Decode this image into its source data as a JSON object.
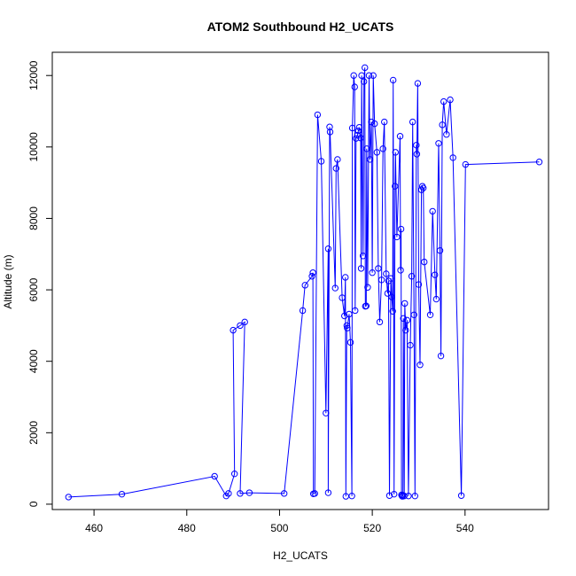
{
  "chart_data": {
    "type": "scatter",
    "title": "ATOM2 Southbound H2_UCATS",
    "xlabel": "H2_UCATS",
    "ylabel": "Altitude (m)",
    "xlim": [
      451,
      558
    ],
    "ylim": [
      -150,
      12650
    ],
    "x_ticks": [
      460,
      480,
      500,
      520,
      540
    ],
    "y_ticks": [
      0,
      2000,
      4000,
      6000,
      8000,
      10000,
      12000
    ],
    "grid": false,
    "legend": "none",
    "series_color": "#0000ff",
    "marker": "open-circle",
    "connected": true,
    "points": [
      [
        454.5,
        200
      ],
      [
        466,
        280
      ],
      [
        486,
        780
      ],
      [
        488.5,
        230
      ],
      [
        489,
        300
      ],
      [
        490.3,
        850
      ],
      [
        490,
        4870
      ],
      [
        491.5,
        5000
      ],
      [
        492.5,
        5100
      ],
      [
        491.5,
        300
      ],
      [
        493.5,
        320
      ],
      [
        501,
        300
      ],
      [
        505,
        5420
      ],
      [
        505.5,
        6130
      ],
      [
        507,
        6380
      ],
      [
        507.2,
        6480
      ],
      [
        507.3,
        290
      ],
      [
        507.6,
        300
      ],
      [
        508.2,
        10900
      ],
      [
        509,
        9600
      ],
      [
        510,
        2550
      ],
      [
        510.5,
        7150
      ],
      [
        510.5,
        320
      ],
      [
        510.8,
        10560
      ],
      [
        510.9,
        10420
      ],
      [
        512,
        6050
      ],
      [
        512.2,
        9400
      ],
      [
        512.5,
        9650
      ],
      [
        513.5,
        5780
      ],
      [
        514,
        5270
      ],
      [
        514.2,
        6350
      ],
      [
        514.3,
        220
      ],
      [
        514.5,
        5000
      ],
      [
        514.6,
        4930
      ],
      [
        515,
        5320
      ],
      [
        515.3,
        4530
      ],
      [
        515.6,
        230
      ],
      [
        515.7,
        10530
      ],
      [
        516,
        12000
      ],
      [
        516.2,
        11680
      ],
      [
        516.3,
        5420
      ],
      [
        516.5,
        10240
      ],
      [
        516.8,
        10330
      ],
      [
        517,
        10450
      ],
      [
        517.2,
        10550
      ],
      [
        517.5,
        10250
      ],
      [
        517.6,
        6600
      ],
      [
        517.7,
        12000
      ],
      [
        518,
        6950
      ],
      [
        518.2,
        11830
      ],
      [
        518.4,
        12220
      ],
      [
        518.5,
        5540
      ],
      [
        518.7,
        5550
      ],
      [
        518.8,
        9950
      ],
      [
        519,
        6070
      ],
      [
        519.3,
        12000
      ],
      [
        519.5,
        9650
      ],
      [
        519.8,
        10700
      ],
      [
        520,
        6480
      ],
      [
        520.2,
        12000
      ],
      [
        520.5,
        10650
      ],
      [
        521,
        9850
      ],
      [
        521.3,
        6600
      ],
      [
        521.6,
        5100
      ],
      [
        522,
        6280
      ],
      [
        522.3,
        9950
      ],
      [
        522.6,
        10700
      ],
      [
        523,
        6450
      ],
      [
        523.3,
        5900
      ],
      [
        523.5,
        6250
      ],
      [
        523.7,
        240
      ],
      [
        524,
        6320
      ],
      [
        524.2,
        5800
      ],
      [
        524.4,
        5400
      ],
      [
        524.5,
        11870
      ],
      [
        524.7,
        280
      ],
      [
        524.9,
        8900
      ],
      [
        525,
        9850
      ],
      [
        525.3,
        7480
      ],
      [
        526,
        10300
      ],
      [
        526.1,
        6550
      ],
      [
        526.2,
        7700
      ],
      [
        526.3,
        260
      ],
      [
        526.4,
        230
      ],
      [
        526.5,
        220
      ],
      [
        526.6,
        250
      ],
      [
        526.7,
        5200
      ],
      [
        526.9,
        230
      ],
      [
        527,
        5620
      ],
      [
        527.2,
        4870
      ],
      [
        527.5,
        5150
      ],
      [
        527.8,
        230
      ],
      [
        528.2,
        4450
      ],
      [
        528.5,
        6380
      ],
      [
        528.7,
        10700
      ],
      [
        529,
        5300
      ],
      [
        529.2,
        230
      ],
      [
        529.5,
        10050
      ],
      [
        529.6,
        9800
      ],
      [
        529.8,
        11780
      ],
      [
        530,
        6150
      ],
      [
        530.3,
        3900
      ],
      [
        530.6,
        8800
      ],
      [
        530.8,
        8900
      ],
      [
        531,
        8850
      ],
      [
        531.2,
        6780
      ],
      [
        532.5,
        5300
      ],
      [
        533,
        8200
      ],
      [
        533.5,
        6420
      ],
      [
        533.8,
        5740
      ],
      [
        534.3,
        10100
      ],
      [
        534.6,
        7100
      ],
      [
        534.8,
        4150
      ],
      [
        535.1,
        10620
      ],
      [
        535.4,
        11270
      ],
      [
        536,
        10350
      ],
      [
        536.8,
        11320
      ],
      [
        537.4,
        9700
      ],
      [
        539.2,
        240
      ],
      [
        540.1,
        9510
      ],
      [
        556,
        9580
      ]
    ]
  }
}
